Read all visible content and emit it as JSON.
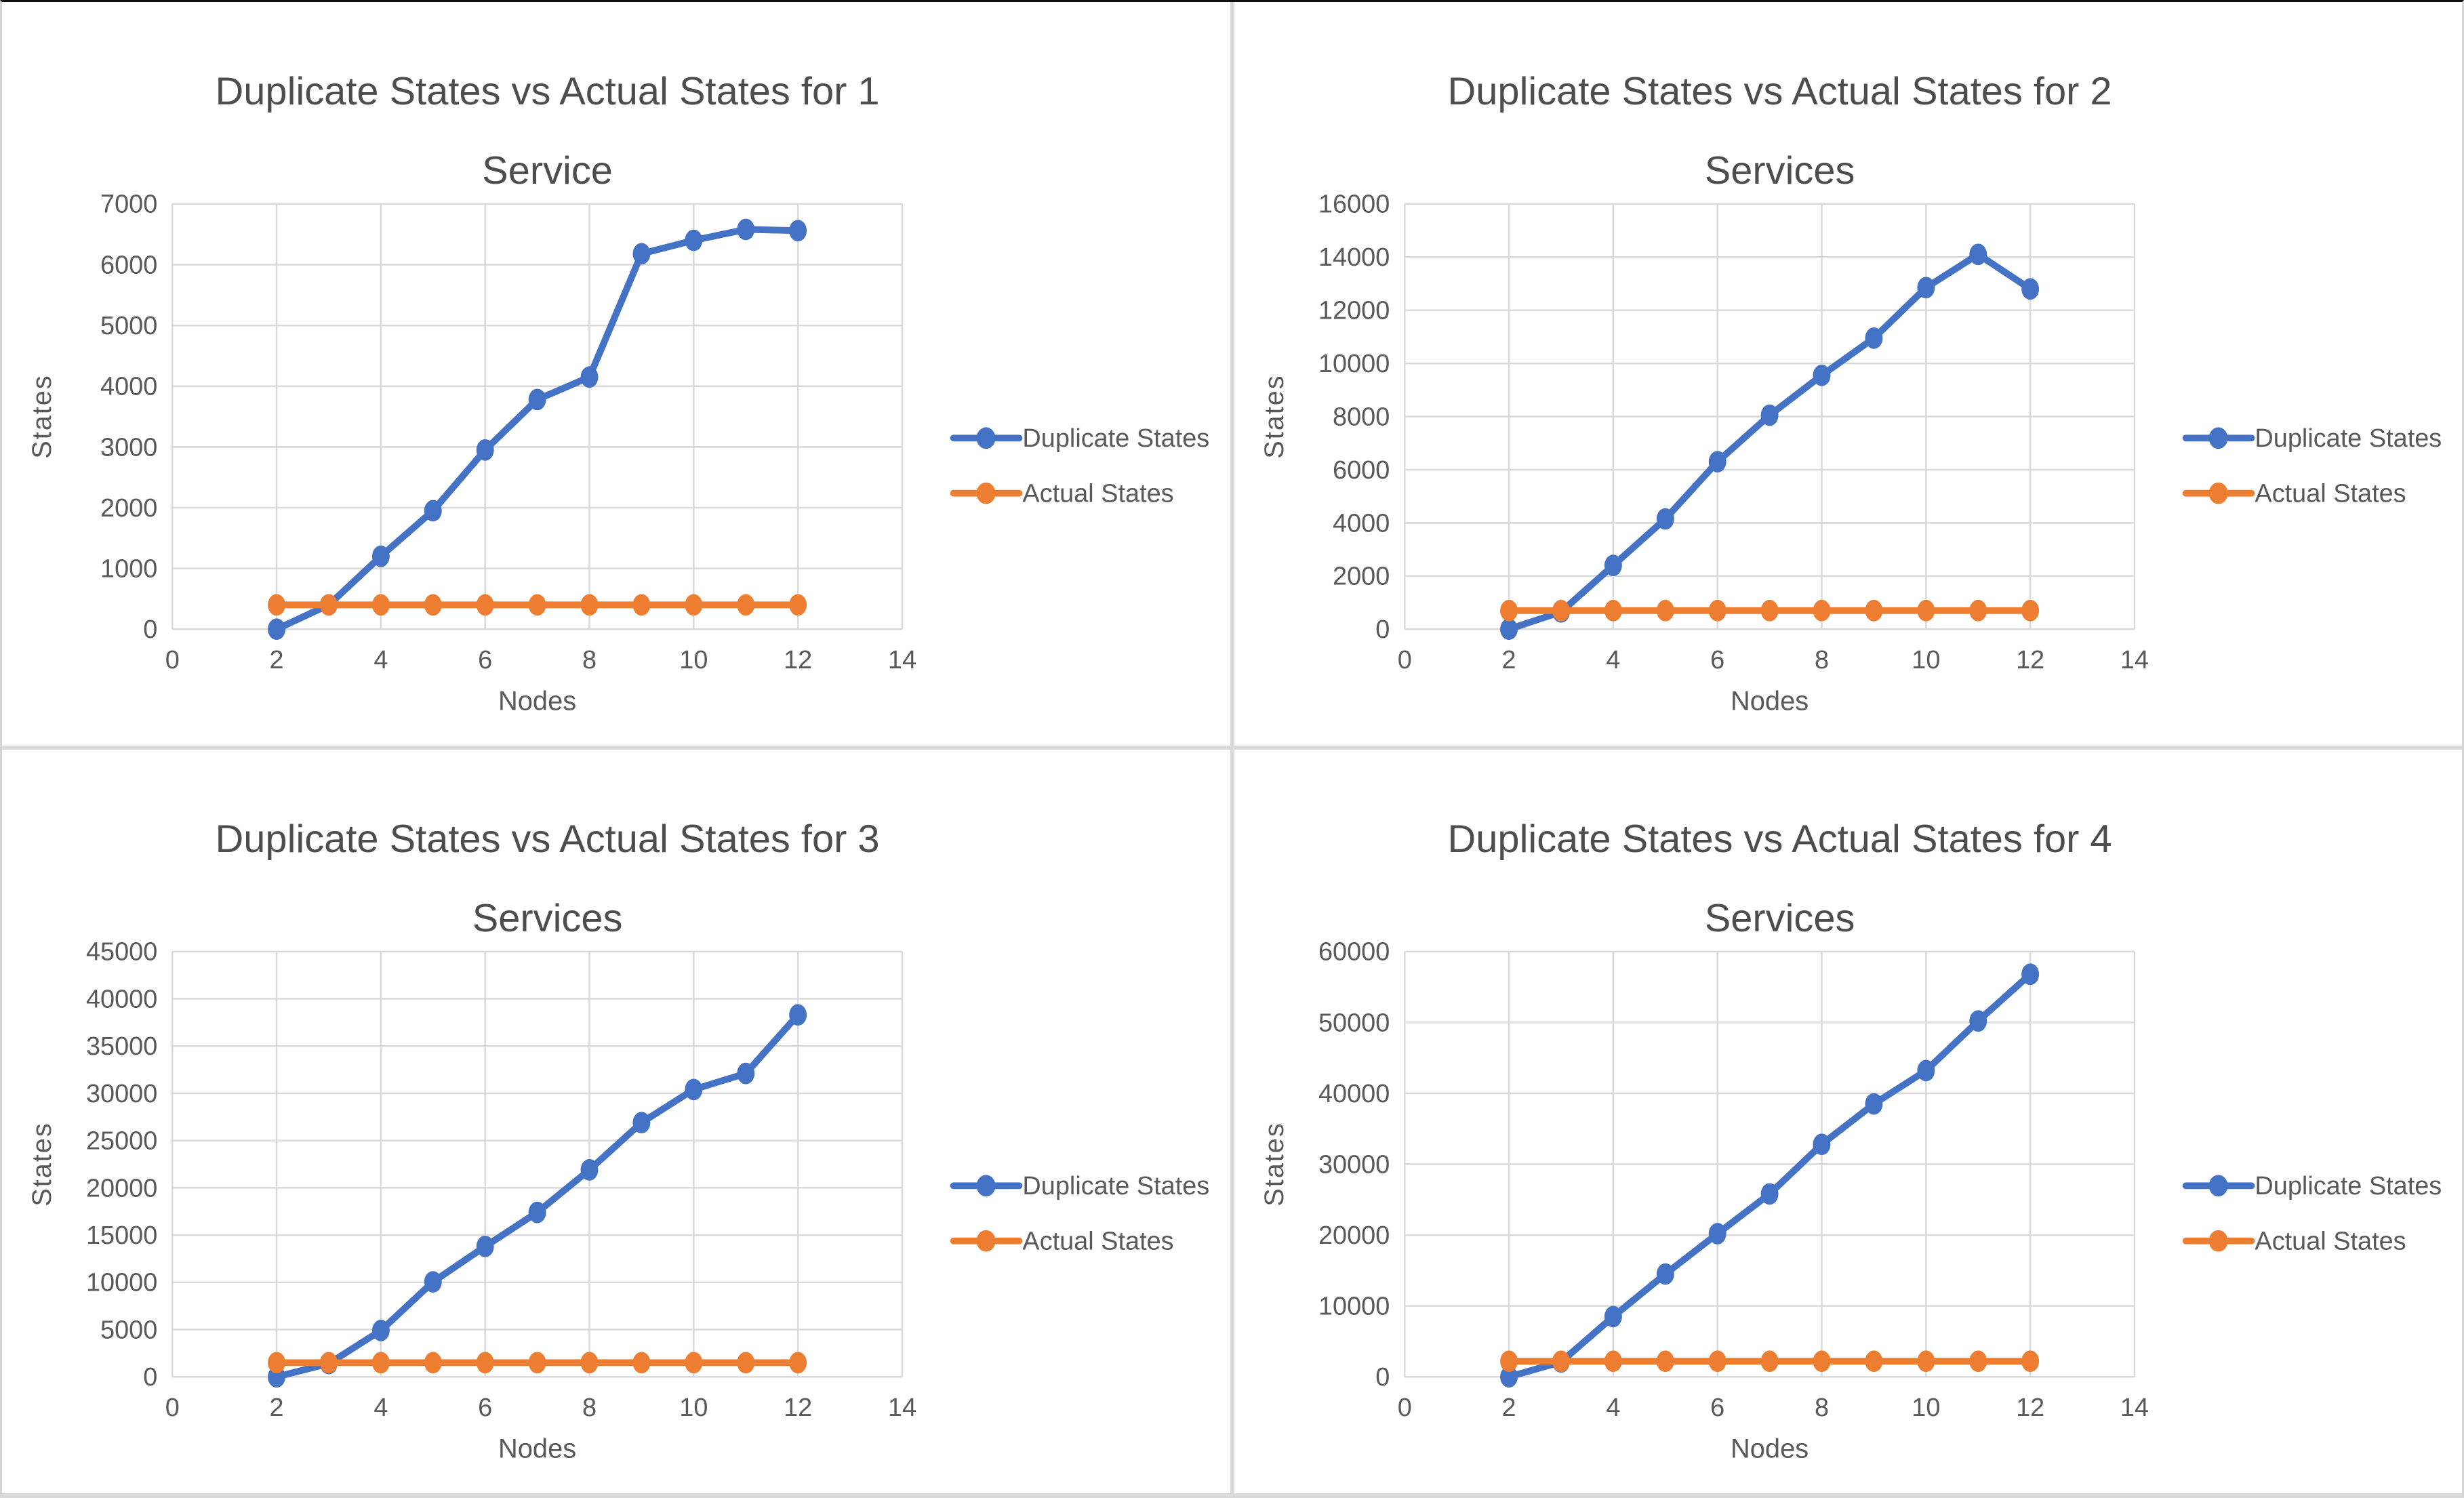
{
  "colors": {
    "duplicate_series": "#4472C4",
    "actual_series": "#ED7D31",
    "title_text": "#4d4d4d",
    "axis_text": "#595959",
    "gridline": "#D9D9D9"
  },
  "chart_data": [
    {
      "type": "line",
      "title": "Duplicate States vs Actual States for 1 Service",
      "title_lines": [
        "Duplicate States vs Actual States for 1",
        "Service"
      ],
      "xlabel": "Nodes",
      "ylabel": "States",
      "xlim": [
        0,
        14
      ],
      "xtick_step": 2,
      "ylim": [
        0,
        7000
      ],
      "ytick_step": 1000,
      "grid": true,
      "legend_position": "right",
      "x": [
        2,
        3,
        4,
        5,
        6,
        7,
        8,
        9,
        10,
        11,
        12
      ],
      "series": [
        {
          "name": "Duplicate States",
          "color": "#4472C4",
          "values": [
            0,
            400,
            1200,
            1950,
            2950,
            3780,
            4150,
            6180,
            6400,
            6580,
            6560
          ]
        },
        {
          "name": "Actual States",
          "color": "#ED7D31",
          "values": [
            400,
            400,
            400,
            400,
            400,
            400,
            400,
            400,
            400,
            400,
            400
          ]
        }
      ]
    },
    {
      "type": "line",
      "title": "Duplicate States vs Actual States for 2 Services",
      "title_lines": [
        "Duplicate States vs Actual States for 2",
        "Services"
      ],
      "xlabel": "Nodes",
      "ylabel": "States",
      "xlim": [
        0,
        14
      ],
      "xtick_step": 2,
      "ylim": [
        0,
        16000
      ],
      "ytick_step": 2000,
      "grid": true,
      "legend_position": "right",
      "x": [
        2,
        3,
        4,
        5,
        6,
        7,
        8,
        9,
        10,
        11,
        12
      ],
      "series": [
        {
          "name": "Duplicate States",
          "color": "#4472C4",
          "values": [
            0,
            650,
            2400,
            4150,
            6300,
            8050,
            9550,
            10950,
            12850,
            14100,
            12800
          ]
        },
        {
          "name": "Actual States",
          "color": "#ED7D31",
          "values": [
            700,
            700,
            700,
            700,
            700,
            700,
            700,
            700,
            700,
            700,
            700
          ]
        }
      ]
    },
    {
      "type": "line",
      "title": "Duplicate States vs Actual States for 3 Services",
      "title_lines": [
        "Duplicate States vs Actual States for 3",
        "Services"
      ],
      "xlabel": "Nodes",
      "ylabel": "States",
      "xlim": [
        0,
        14
      ],
      "xtick_step": 2,
      "ylim": [
        0,
        45000
      ],
      "ytick_step": 5000,
      "grid": true,
      "legend_position": "right",
      "x": [
        2,
        3,
        4,
        5,
        6,
        7,
        8,
        9,
        10,
        11,
        12
      ],
      "series": [
        {
          "name": "Duplicate States",
          "color": "#4472C4",
          "values": [
            0,
            1400,
            4900,
            10050,
            13800,
            17400,
            21900,
            26900,
            30400,
            32100,
            38300
          ]
        },
        {
          "name": "Actual States",
          "color": "#ED7D31",
          "values": [
            1500,
            1500,
            1500,
            1500,
            1500,
            1500,
            1500,
            1500,
            1500,
            1500,
            1500
          ]
        }
      ]
    },
    {
      "type": "line",
      "title": "Duplicate States vs Actual States for 4 Services",
      "title_lines": [
        "Duplicate States vs Actual States for 4",
        "Services"
      ],
      "xlabel": "Nodes",
      "ylabel": "States",
      "xlim": [
        0,
        14
      ],
      "xtick_step": 2,
      "ylim": [
        0,
        60000
      ],
      "ytick_step": 10000,
      "grid": true,
      "legend_position": "right",
      "x": [
        2,
        3,
        4,
        5,
        6,
        7,
        8,
        9,
        10,
        11,
        12
      ],
      "series": [
        {
          "name": "Duplicate States",
          "color": "#4472C4",
          "values": [
            0,
            2100,
            8500,
            14500,
            20200,
            25800,
            32800,
            38500,
            43200,
            50200,
            56800
          ]
        },
        {
          "name": "Actual States",
          "color": "#ED7D31",
          "values": [
            2200,
            2200,
            2200,
            2200,
            2200,
            2200,
            2200,
            2200,
            2200,
            2200,
            2200
          ]
        }
      ]
    }
  ]
}
